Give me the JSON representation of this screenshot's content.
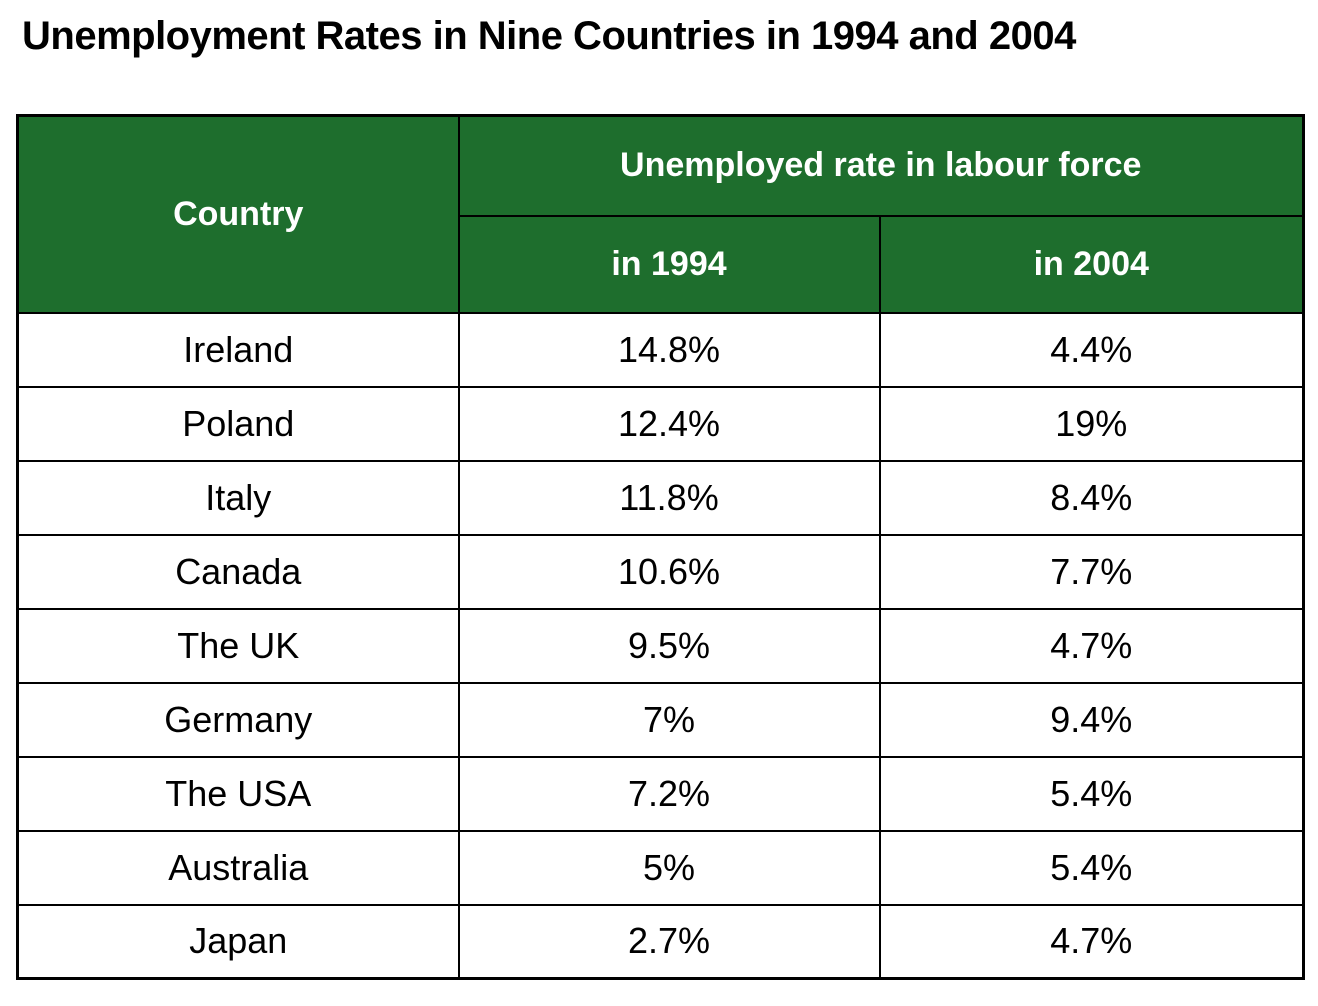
{
  "title": "Unemployment Rates in Nine Countries in 1994 and 2004",
  "table": {
    "country_header": "Country",
    "group_header": "Unemployed rate in labour force",
    "col_1994": "in 1994",
    "col_2004": "in 2004",
    "rows": [
      {
        "country": "Ireland",
        "rate_1994": "14.8%",
        "rate_2004": "4.4%"
      },
      {
        "country": "Poland",
        "rate_1994": "12.4%",
        "rate_2004": "19%"
      },
      {
        "country": "Italy",
        "rate_1994": "11.8%",
        "rate_2004": "8.4%"
      },
      {
        "country": "Canada",
        "rate_1994": "10.6%",
        "rate_2004": "7.7%"
      },
      {
        "country": "The UK",
        "rate_1994": "9.5%",
        "rate_2004": "4.7%"
      },
      {
        "country": "Germany",
        "rate_1994": "7%",
        "rate_2004": "9.4%"
      },
      {
        "country": "The USA",
        "rate_1994": "7.2%",
        "rate_2004": "5.4%"
      },
      {
        "country": "Australia",
        "rate_1994": "5%",
        "rate_2004": "5.4%"
      },
      {
        "country": "Japan",
        "rate_1994": "2.7%",
        "rate_2004": "4.7%"
      }
    ]
  },
  "colors": {
    "header_background": "#1E6E2D",
    "header_text": "#FFFFFF",
    "border": "#000000",
    "body_text": "#000000",
    "page_background": "#FFFFFF"
  },
  "chart_data": {
    "type": "table",
    "title": "Unemployment Rates in Nine Countries in 1994 and 2004",
    "categories": [
      "Ireland",
      "Poland",
      "Italy",
      "Canada",
      "The UK",
      "Germany",
      "The USA",
      "Australia",
      "Japan"
    ],
    "series": [
      {
        "name": "in 1994",
        "values": [
          14.8,
          12.4,
          11.8,
          10.6,
          9.5,
          7,
          7.2,
          5,
          2.7
        ]
      },
      {
        "name": "in 2004",
        "values": [
          4.4,
          19,
          8.4,
          7.7,
          4.7,
          9.4,
          5.4,
          5.4,
          4.7
        ]
      }
    ],
    "unit": "%",
    "column_group_label": "Unemployed rate in labour force",
    "row_label_column": "Country"
  }
}
